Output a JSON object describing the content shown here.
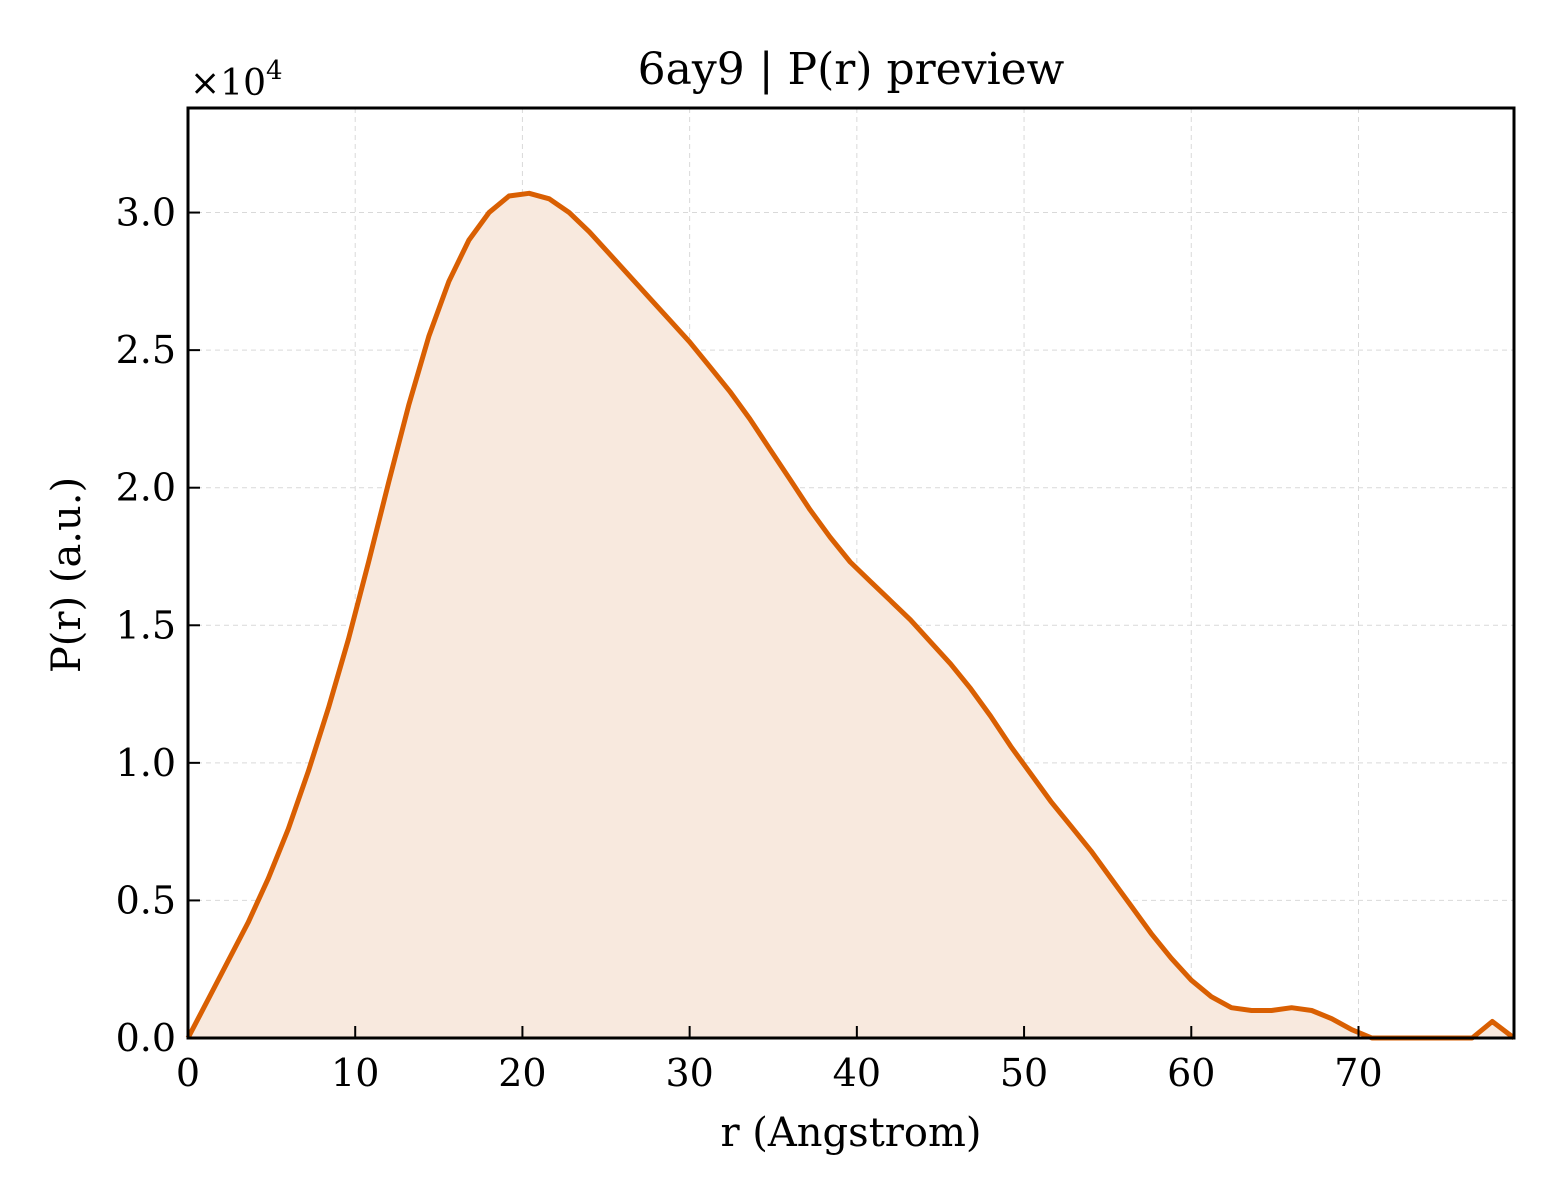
{
  "chart_data": {
    "type": "area",
    "title": "6ay9 | P(r) preview",
    "xlabel": "r (Angstrom)",
    "ylabel": "P(r) (a.u.)",
    "y_multiplier_label": "×10",
    "y_multiplier_exp": "4",
    "xlim": [
      0,
      79.3
    ],
    "ylim": [
      0,
      3.38
    ],
    "y_scale": 10000,
    "xticks": [
      0,
      10,
      20,
      30,
      40,
      50,
      60,
      70
    ],
    "xtick_labels": [
      "0",
      "10",
      "20",
      "30",
      "40",
      "50",
      "60",
      "70"
    ],
    "yticks": [
      0,
      0.5,
      1.0,
      1.5,
      2.0,
      2.5,
      3.0
    ],
    "ytick_labels": [
      "0.0",
      "0.5",
      "1.0",
      "1.5",
      "2.0",
      "2.5",
      "3.0"
    ],
    "grid": true,
    "colors": {
      "line": "#d95f02",
      "fill": "#f8e9de",
      "grid": "#d9d9d9"
    },
    "series": [
      {
        "x": [
          0,
          1.2,
          2.4,
          3.6,
          4.8,
          6.0,
          7.2,
          8.4,
          9.6,
          10.8,
          12.0,
          13.2,
          14.4,
          15.6,
          16.8,
          18.0,
          19.2,
          20.4,
          21.6,
          22.8,
          24.0,
          25.2,
          26.4,
          27.6,
          28.8,
          30.0,
          31.2,
          32.4,
          33.6,
          34.8,
          36.0,
          37.2,
          38.4,
          39.6,
          40.8,
          42.0,
          43.2,
          44.4,
          45.6,
          46.8,
          48.0,
          49.2,
          50.4,
          51.6,
          52.8,
          54.0,
          55.2,
          56.4,
          57.6,
          58.8,
          60.0,
          61.2,
          62.4,
          63.6,
          64.8,
          66.0,
          67.2,
          68.4,
          69.6,
          70.8,
          72.0,
          73.2,
          74.4,
          75.6,
          76.8,
          78.0,
          79.3
        ],
        "y": [
          0.0,
          0.14,
          0.28,
          0.42,
          0.58,
          0.76,
          0.97,
          1.2,
          1.45,
          1.73,
          2.02,
          2.3,
          2.55,
          2.75,
          2.9,
          3.0,
          3.06,
          3.07,
          3.05,
          3.0,
          2.93,
          2.85,
          2.77,
          2.69,
          2.61,
          2.53,
          2.44,
          2.35,
          2.25,
          2.14,
          2.03,
          1.92,
          1.82,
          1.73,
          1.66,
          1.59,
          1.52,
          1.44,
          1.36,
          1.27,
          1.17,
          1.06,
          0.96,
          0.86,
          0.77,
          0.68,
          0.58,
          0.48,
          0.38,
          0.29,
          0.21,
          0.15,
          0.11,
          0.1,
          0.1,
          0.11,
          0.1,
          0.07,
          0.03,
          0.0,
          0.0,
          0.0,
          0.0,
          0.0,
          0.0,
          0.06,
          0.0
        ]
      }
    ]
  }
}
